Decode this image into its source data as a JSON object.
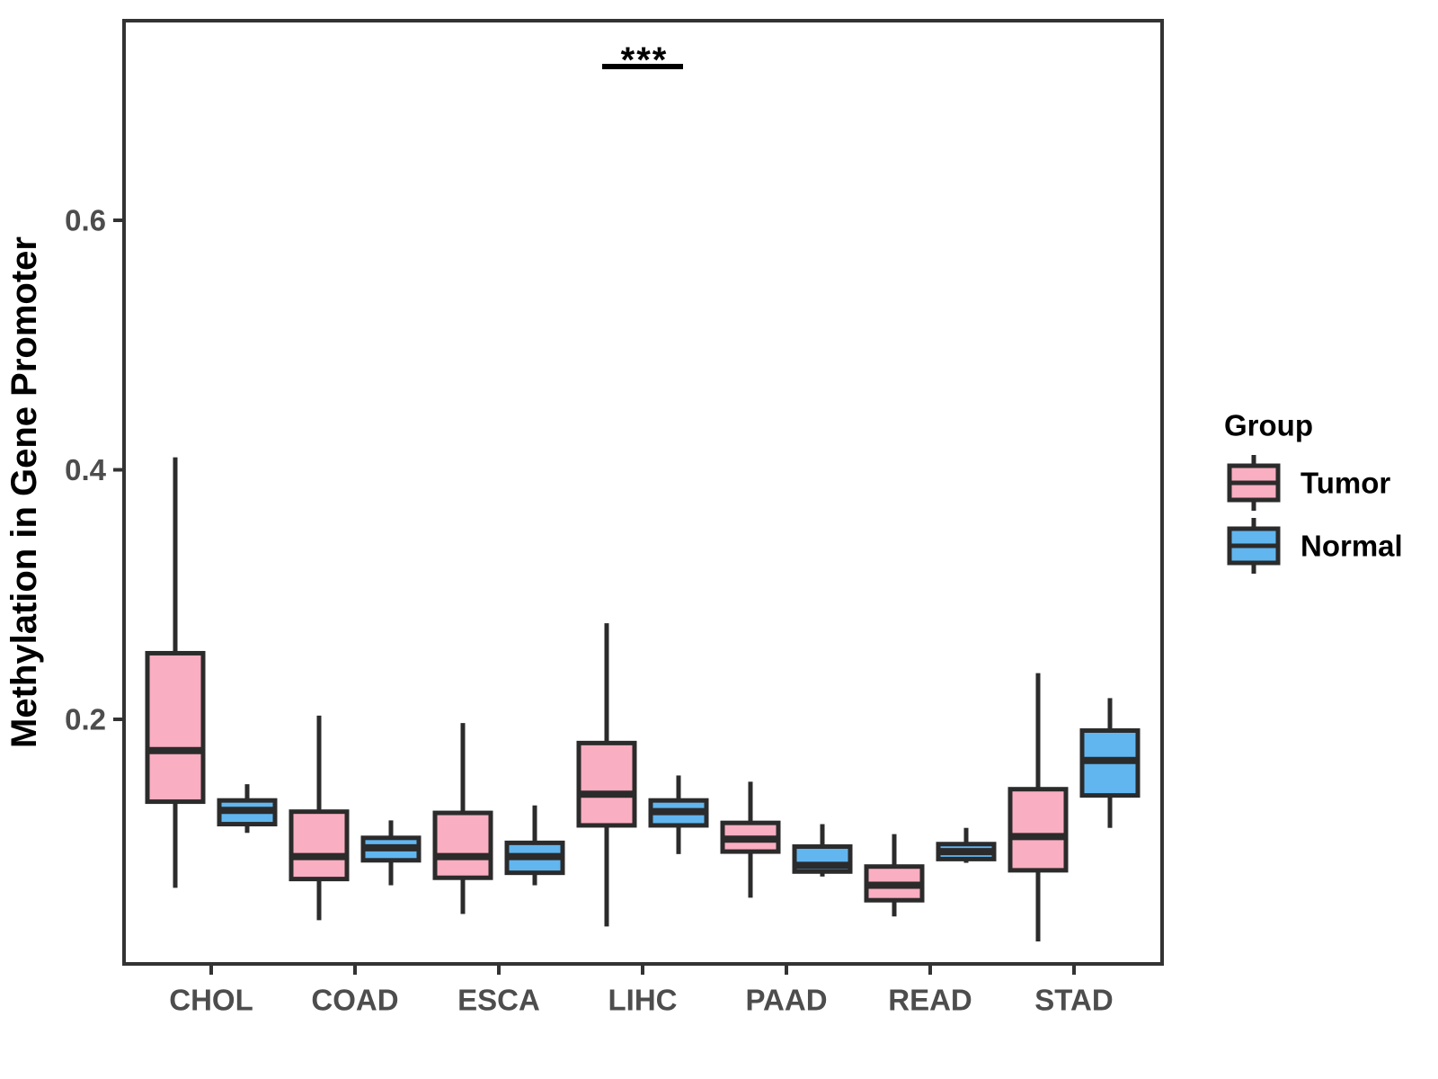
{
  "chart_data": {
    "type": "boxplot",
    "title": "",
    "xlabel": "",
    "ylabel": "Methylation in Gene Promoter",
    "categories": [
      "CHOL",
      "COAD",
      "ESCA",
      "LIHC",
      "PAAD",
      "READ",
      "STAD"
    ],
    "y_ticks": [
      0.2,
      0.4,
      0.6
    ],
    "y_tick_labels": [
      "0.2",
      "0.4",
      "0.6"
    ],
    "ylim": [
      0.0,
      0.76
    ],
    "grid": false,
    "legend": {
      "title": "Group",
      "position": "right",
      "entries": [
        {
          "label": "Tumor",
          "color": "#FAAEC1"
        },
        {
          "label": "Normal",
          "color": "#61B6EF"
        }
      ]
    },
    "significance": {
      "category": "LIHC",
      "label": "***"
    },
    "series": [
      {
        "name": "Tumor",
        "color": "#FAAEC1",
        "boxes": [
          {
            "category": "CHOL",
            "whisker_low": 0.065,
            "q1": 0.134,
            "median": 0.175,
            "q3": 0.253,
            "whisker_high": 0.41
          },
          {
            "category": "COAD",
            "whisker_low": 0.039,
            "q1": 0.072,
            "median": 0.09,
            "q3": 0.126,
            "whisker_high": 0.203
          },
          {
            "category": "ESCA",
            "whisker_low": 0.044,
            "q1": 0.073,
            "median": 0.09,
            "q3": 0.125,
            "whisker_high": 0.197
          },
          {
            "category": "LIHC",
            "whisker_low": 0.034,
            "q1": 0.115,
            "median": 0.14,
            "q3": 0.181,
            "whisker_high": 0.277
          },
          {
            "category": "PAAD",
            "whisker_low": 0.057,
            "q1": 0.094,
            "median": 0.104,
            "q3": 0.117,
            "whisker_high": 0.15
          },
          {
            "category": "READ",
            "whisker_low": 0.042,
            "q1": 0.055,
            "median": 0.067,
            "q3": 0.082,
            "whisker_high": 0.108
          },
          {
            "category": "STAD",
            "whisker_low": 0.022,
            "q1": 0.079,
            "median": 0.106,
            "q3": 0.144,
            "whisker_high": 0.237
          }
        ]
      },
      {
        "name": "Normal",
        "color": "#61B6EF",
        "boxes": [
          {
            "category": "CHOL",
            "whisker_low": 0.109,
            "q1": 0.116,
            "median": 0.127,
            "q3": 0.135,
            "whisker_high": 0.148
          },
          {
            "category": "COAD",
            "whisker_low": 0.067,
            "q1": 0.087,
            "median": 0.097,
            "q3": 0.105,
            "whisker_high": 0.119
          },
          {
            "category": "ESCA",
            "whisker_low": 0.067,
            "q1": 0.077,
            "median": 0.09,
            "q3": 0.101,
            "whisker_high": 0.131
          },
          {
            "category": "LIHC",
            "whisker_low": 0.092,
            "q1": 0.115,
            "median": 0.126,
            "q3": 0.135,
            "whisker_high": 0.155
          },
          {
            "category": "PAAD",
            "whisker_low": 0.074,
            "q1": 0.078,
            "median": 0.083,
            "q3": 0.098,
            "whisker_high": 0.116
          },
          {
            "category": "READ",
            "whisker_low": 0.085,
            "q1": 0.088,
            "median": 0.094,
            "q3": 0.1,
            "whisker_high": 0.113
          },
          {
            "category": "STAD",
            "whisker_low": 0.113,
            "q1": 0.139,
            "median": 0.167,
            "q3": 0.191,
            "whisker_high": 0.217
          }
        ]
      }
    ],
    "style_colors": {
      "box_stroke": "#2b2b2b",
      "panel_border": "#333333",
      "tick_label": "#4d4d4d",
      "axis_title": "#000000"
    }
  }
}
